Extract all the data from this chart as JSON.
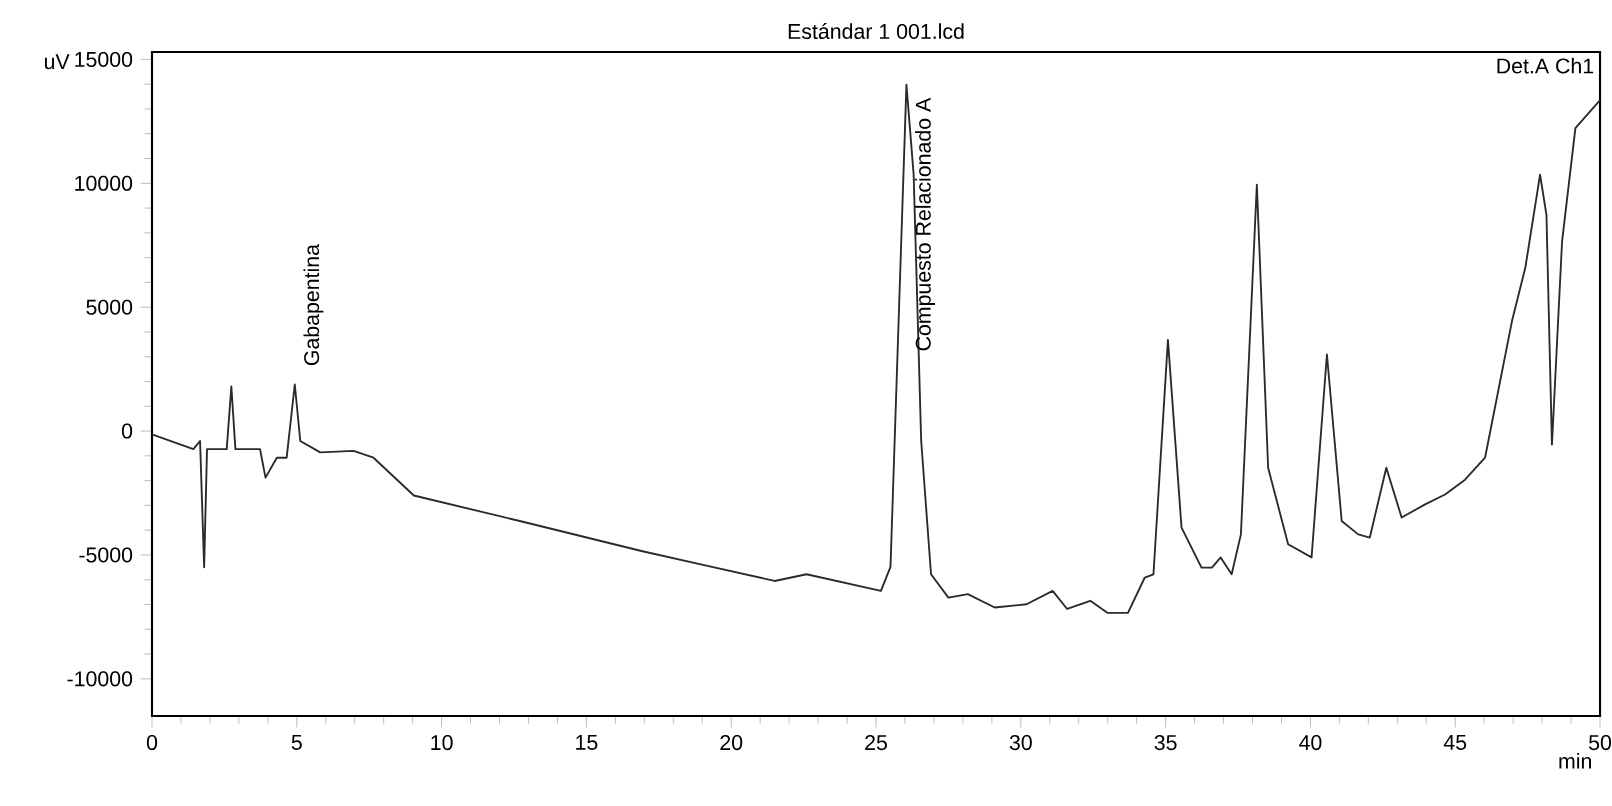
{
  "chart_data": {
    "type": "line",
    "title": "Estándar 1 001.lcd",
    "xlabel": "min",
    "ylabel": "uV",
    "xlim": [
      0,
      50
    ],
    "ylim": [
      -11500,
      15300
    ],
    "xticks": [
      0,
      5,
      10,
      15,
      20,
      25,
      30,
      35,
      40,
      45,
      50
    ],
    "yticks": [
      -10000,
      -5000,
      0,
      5000,
      10000,
      15000
    ],
    "grid": false,
    "annotations": [
      {
        "text": "Gabapentina",
        "x": 4.93,
        "y": 1880
      },
      {
        "text": "Compuesto Relacionado A",
        "x": 26.05,
        "y": 13980
      },
      "Det.A Ch1"
    ],
    "series": [
      {
        "color": "#2a2a2a",
        "x": [
          0,
          1.43,
          1.66,
          1.8,
          1.9,
          2.58,
          2.74,
          2.88,
          3.73,
          3.92,
          4.31,
          4.65,
          4.93,
          5.12,
          5.81,
          6.96,
          7.65,
          9.04,
          12.7,
          16.9,
          18.95,
          21.5,
          22.6,
          25.17,
          25.5,
          26.05,
          26.3,
          26.56,
          26.9,
          27.5,
          28.17,
          29.1,
          30.2,
          31.1,
          31.6,
          32.4,
          33.0,
          33.7,
          34.28,
          34.58,
          35.08,
          35.55,
          36.24,
          36.6,
          36.9,
          37.28,
          37.6,
          38.15,
          38.54,
          39.23,
          40.04,
          40.57,
          41.08,
          41.65,
          42.05,
          42.62,
          43.15,
          43.96,
          44.65,
          45.34,
          46.03,
          46.96,
          47.42,
          47.93,
          48.15,
          48.34,
          48.69,
          49.15,
          50
        ],
        "values": [
          -130,
          -730,
          -400,
          -5500,
          -730,
          -730,
          1800,
          -730,
          -730,
          -1880,
          -1075,
          -1075,
          1880,
          -400,
          -860,
          -800,
          -1075,
          -2600,
          -3630,
          -4840,
          -5380,
          -6050,
          -5780,
          -6450,
          -5480,
          13980,
          10350,
          -400,
          -5780,
          -6720,
          -6580,
          -7120,
          -6990,
          -6450,
          -7180,
          -6850,
          -7340,
          -7340,
          -5910,
          -5780,
          3680,
          -3900,
          -5510,
          -5510,
          -5100,
          -5780,
          -4170,
          9940,
          -1480,
          -4570,
          -5100,
          3090,
          -3630,
          -4170,
          -4300,
          -1480,
          -3490,
          -2960,
          -2560,
          -1960,
          -1075,
          4440,
          6590,
          10350,
          8730,
          -540,
          7660,
          12230,
          13360
        ]
      }
    ]
  }
}
